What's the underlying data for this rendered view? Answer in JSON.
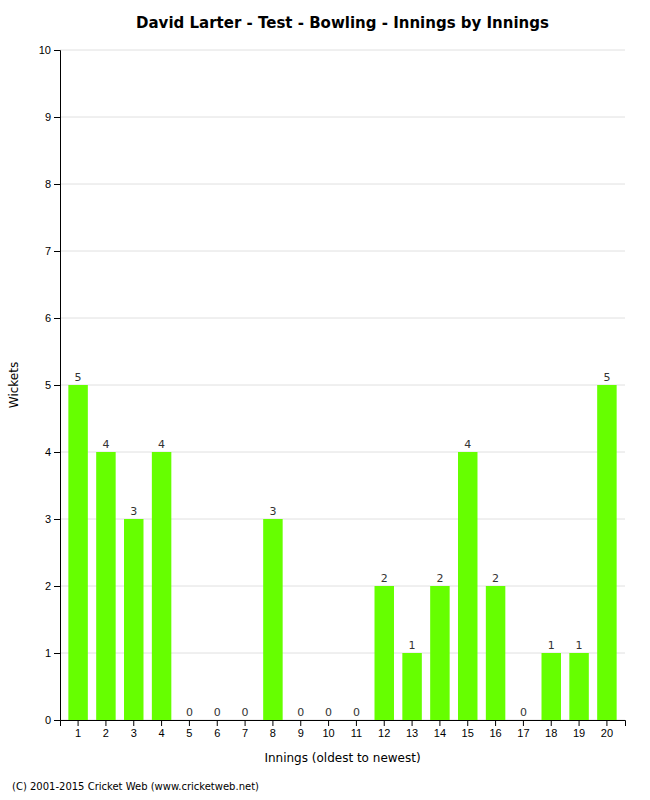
{
  "chart_data": {
    "type": "bar",
    "title": "David Larter - Test - Bowling - Innings by Innings",
    "x_label": "Innings (oldest to newest)",
    "y_label": "Wickets",
    "categories": [
      "1",
      "2",
      "3",
      "4",
      "5",
      "6",
      "7",
      "8",
      "9",
      "10",
      "11",
      "12",
      "13",
      "14",
      "15",
      "16",
      "17",
      "18",
      "19",
      "20"
    ],
    "values": [
      5,
      4,
      3,
      4,
      0,
      0,
      0,
      3,
      0,
      0,
      0,
      2,
      1,
      2,
      4,
      2,
      0,
      1,
      1,
      5
    ],
    "color": "#66ff00",
    "ylim": [
      0,
      10
    ],
    "yticks": [
      0,
      1,
      2,
      3,
      4,
      5,
      6,
      7,
      8,
      9,
      10
    ],
    "grid": true,
    "data_labels": true,
    "annotations": [
      "(C) 2001-2015 Cricket Web (www.cricketweb.net)"
    ]
  }
}
